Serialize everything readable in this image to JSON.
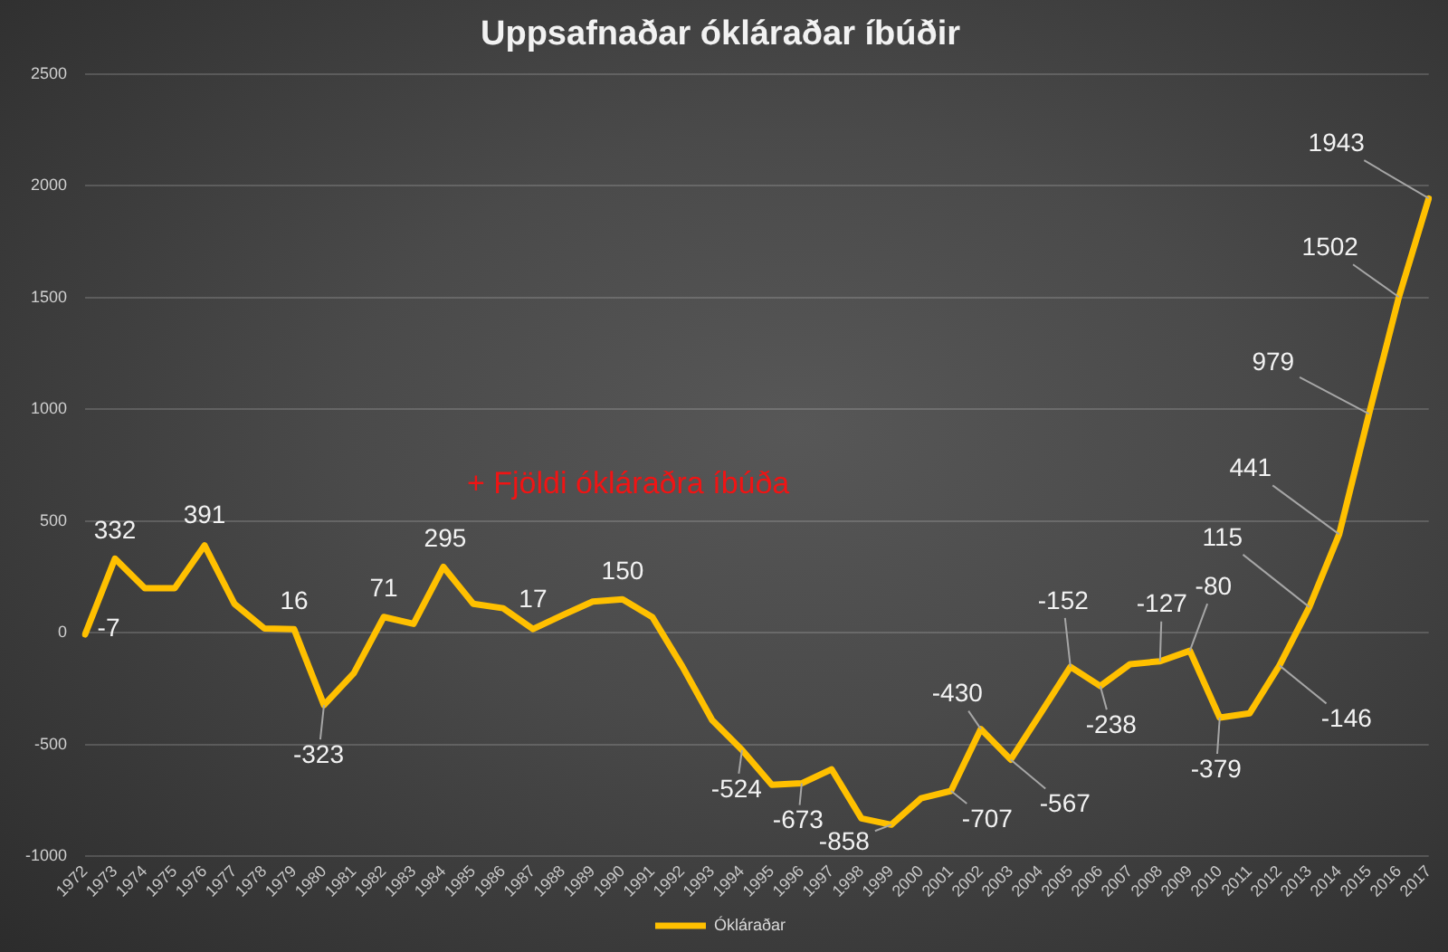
{
  "chart_data": {
    "type": "line",
    "title": "Uppsafnaðar ókláraðar íbúðir",
    "categories": [
      "1972",
      "1973",
      "1974",
      "1975",
      "1976",
      "1977",
      "1978",
      "1979",
      "1980",
      "1981",
      "1982",
      "1983",
      "1984",
      "1985",
      "1986",
      "1987",
      "1988",
      "1989",
      "1990",
      "1991",
      "1992",
      "1993",
      "1994",
      "1995",
      "1996",
      "1997",
      "1998",
      "1999",
      "2000",
      "2001",
      "2002",
      "2003",
      "2004",
      "2005",
      "2006",
      "2007",
      "2008",
      "2009",
      "2010",
      "2011",
      "2012",
      "2013",
      "2014",
      "2015",
      "2016",
      "2017"
    ],
    "series": [
      {
        "name": "Ókláraðar",
        "color": "#ffc000",
        "values": [
          -7,
          332,
          200,
          200,
          391,
          130,
          20,
          16,
          -323,
          -180,
          71,
          40,
          295,
          130,
          110,
          17,
          80,
          140,
          150,
          70,
          -150,
          -390,
          -524,
          -680,
          -673,
          -610,
          -830,
          -858,
          -740,
          -707,
          -430,
          -567,
          -360,
          -152,
          -238,
          -140,
          -127,
          -80,
          -379,
          -360,
          -146,
          115,
          441,
          979,
          1502,
          1943
        ],
        "value_labels": [
          "-7",
          "332",
          null,
          null,
          "391",
          null,
          null,
          "16",
          "-323",
          null,
          "71",
          null,
          "295",
          null,
          null,
          "17",
          null,
          null,
          "150",
          null,
          null,
          null,
          "-524",
          null,
          "-673",
          null,
          null,
          "-858",
          null,
          "-707",
          "-430",
          "-567",
          null,
          "-152",
          "-238",
          null,
          "-127",
          "-80",
          "-379",
          null,
          "-146",
          "115",
          "441",
          "979",
          "1502",
          "1943"
        ]
      }
    ],
    "ylim": [
      -1000,
      2500
    ],
    "yticks": [
      -1000,
      -500,
      0,
      500,
      1000,
      1500,
      2000,
      2500
    ],
    "grid": "y",
    "legend": "bottom",
    "marker": "none",
    "line_style": "solid",
    "annotations": [
      "+ Fjöldi ókláraðra íbúða"
    ]
  }
}
